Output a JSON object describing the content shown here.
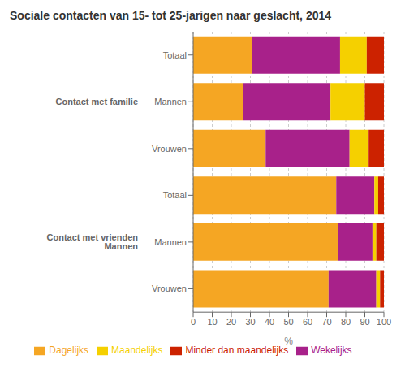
{
  "chart_data": {
    "type": "bar",
    "orientation": "horizontal",
    "stacked": true,
    "title": "Sociale contacten van 15- tot 25-jarigen naar geslacht, 2014",
    "xlabel": "%",
    "categories": [
      "Totaal",
      "Mannen",
      "Vrouwen",
      "Totaal",
      "Mannen",
      "Vrouwen"
    ],
    "series": [
      {
        "name": "Dagelijks",
        "color": "#F5A623",
        "values": [
          31,
          26,
          38,
          75,
          76,
          71
        ]
      },
      {
        "name": "Wekelijks",
        "color": "#A8218A",
        "values": [
          46,
          46,
          44,
          20,
          18,
          25
        ]
      },
      {
        "name": "Maandelijks",
        "color": "#F5D000",
        "values": [
          14,
          18,
          10,
          2,
          2,
          2
        ]
      },
      {
        "name": "Minder dan maandelijks",
        "color": "#CC2200",
        "values": [
          9,
          10,
          8,
          3,
          4,
          2
        ]
      }
    ],
    "xlim": [
      0,
      100
    ],
    "xticks": [
      0,
      10,
      20,
      30,
      40,
      50,
      60,
      70,
      80,
      90,
      100
    ],
    "grid": true,
    "legend": "bottom",
    "annotations": [
      "Contact met familie",
      "Contact met vrienden Mannen"
    ]
  }
}
